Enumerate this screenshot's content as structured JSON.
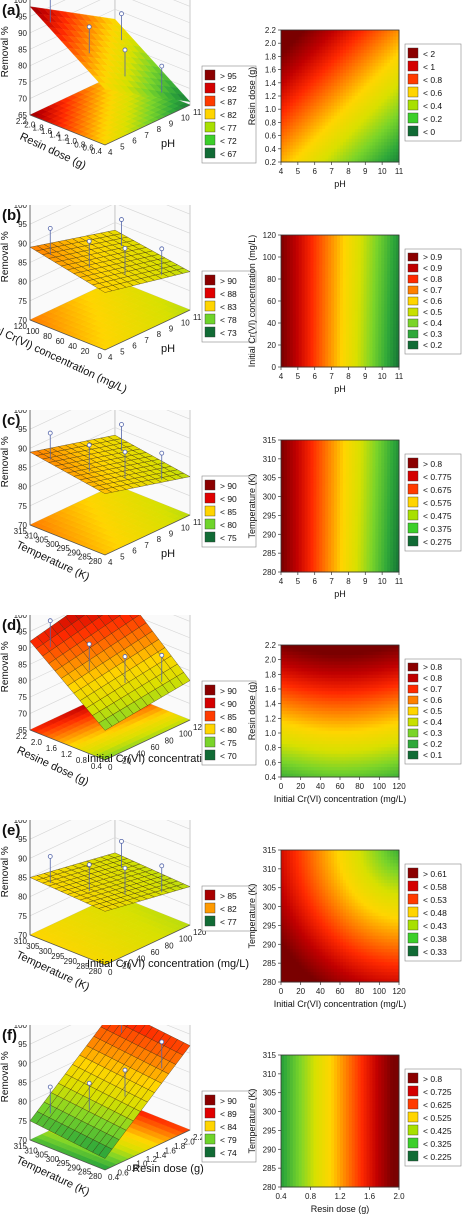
{
  "panels": [
    {
      "label": "(a)",
      "surface": {
        "type": "surface3d",
        "zlabel": "Removal %",
        "xlabel": "pH",
        "ylabel": "Resin dose (g)",
        "zticks": [
          "65",
          "70",
          "75",
          "80",
          "85",
          "90",
          "95",
          "100"
        ],
        "xticks": [
          "4",
          "5",
          "6",
          "7",
          "8",
          "9",
          "10",
          "11"
        ],
        "yticks": [
          "0.4",
          "0.6",
          "0.8",
          "1.0",
          "1.2",
          "1.4",
          "1.6",
          "1.8",
          "2.0",
          "2.2"
        ],
        "zlim": [
          65,
          100
        ],
        "corners": {
          "low_x_low_y": 82,
          "high_x_low_y": 66,
          "low_x_high_y": 98,
          "high_x_high_y": 82
        },
        "mesh": false,
        "legend": [
          "> 95",
          "< 92",
          "< 87",
          "< 82",
          "< 77",
          "< 72",
          "< 67"
        ],
        "legend_colors": [
          "#8b0000",
          "#d40000",
          "#ff3b00",
          "#ffd500",
          "#a8e000",
          "#3ccf2a",
          "#116b35"
        ]
      },
      "contour": {
        "type": "heatmap",
        "xlabel": "pH",
        "ylabel": "Resin dose (g)",
        "xticks": [
          "4",
          "5",
          "6",
          "7",
          "8",
          "9",
          "10",
          "11"
        ],
        "yticks": [
          "0.2",
          "0.4",
          "0.6",
          "0.8",
          "1.0",
          "1.2",
          "1.4",
          "1.6",
          "1.8",
          "2.0",
          "2.2"
        ],
        "pattern": "diag",
        "legend": [
          "< 2",
          "< 1",
          "< 0.8",
          "< 0.6",
          "< 0.4",
          "< 0.2",
          "< 0"
        ],
        "legend_colors": [
          "#8b0000",
          "#d40000",
          "#ff3b00",
          "#ffd500",
          "#a8e000",
          "#3ccf2a",
          "#116b35"
        ]
      }
    },
    {
      "label": "(b)",
      "surface": {
        "type": "surface3d",
        "zlabel": "Removal %",
        "xlabel": "pH",
        "ylabel": "Initial Cr(VI) concentration (mg/L)",
        "zticks": [
          "70",
          "75",
          "80",
          "85",
          "90",
          "95",
          "100"
        ],
        "xticks": [
          "4",
          "5",
          "6",
          "7",
          "8",
          "9",
          "10",
          "11"
        ],
        "yticks": [
          "0",
          "20",
          "40",
          "60",
          "80",
          "100",
          "120"
        ],
        "zlim": [
          70,
          100
        ],
        "corners": {
          "low_x_low_y": 85,
          "high_x_low_y": 80,
          "low_x_high_y": 89,
          "high_x_high_y": 83
        },
        "mesh": true,
        "legend": [
          "> 90",
          "< 88",
          "< 83",
          "< 78",
          "< 73"
        ],
        "legend_colors": [
          "#8b0000",
          "#e00000",
          "#ffd500",
          "#6fd42a",
          "#116b35"
        ]
      },
      "contour": {
        "type": "heatmap",
        "xlabel": "pH",
        "ylabel": "Initial Cr(VI) concentration (mg/L)",
        "xticks": [
          "4",
          "5",
          "6",
          "7",
          "8",
          "9",
          "10",
          "11"
        ],
        "yticks": [
          "0",
          "20",
          "40",
          "60",
          "80",
          "100",
          "120"
        ],
        "pattern": "xs",
        "legend": [
          "> 0.9",
          "< 0.9",
          "< 0.8",
          "< 0.7",
          "< 0.6",
          "< 0.5",
          "< 0.4",
          "< 0.3",
          "< 0.2"
        ],
        "legend_colors": [
          "#8b0000",
          "#c00000",
          "#ff2a00",
          "#ff8000",
          "#ffd500",
          "#c8e000",
          "#7ad42a",
          "#2fa83a",
          "#116b35"
        ]
      }
    },
    {
      "label": "(c)",
      "surface": {
        "type": "surface3d",
        "zlabel": "Removal %",
        "xlabel": "pH",
        "ylabel": "Temperature (K)",
        "zticks": [
          "70",
          "75",
          "80",
          "85",
          "90",
          "95",
          "100"
        ],
        "xticks": [
          "4",
          "5",
          "6",
          "7",
          "8",
          "9",
          "10",
          "11"
        ],
        "yticks": [
          "280",
          "285",
          "290",
          "295",
          "300",
          "305",
          "310",
          "315"
        ],
        "zlim": [
          70,
          100
        ],
        "corners": {
          "low_x_low_y": 86,
          "high_x_low_y": 80,
          "low_x_high_y": 89,
          "high_x_high_y": 83
        },
        "mesh": true,
        "legend": [
          "> 90",
          "< 90",
          "< 85",
          "< 80",
          "< 75"
        ],
        "legend_colors": [
          "#8b0000",
          "#e00000",
          "#ffd500",
          "#6fd42a",
          "#116b35"
        ]
      },
      "contour": {
        "type": "heatmap",
        "xlabel": "pH",
        "ylabel": "Temperature (K)",
        "xticks": [
          "4",
          "5",
          "6",
          "7",
          "8",
          "9",
          "10",
          "11"
        ],
        "yticks": [
          "280",
          "285",
          "290",
          "295",
          "300",
          "305",
          "310",
          "315"
        ],
        "pattern": "xs",
        "legend": [
          "> 0.8",
          "< 0.775",
          "< 0.675",
          "< 0.575",
          "< 0.475",
          "< 0.375",
          "< 0.275"
        ],
        "legend_colors": [
          "#8b0000",
          "#d40000",
          "#ff3b00",
          "#ffd500",
          "#a8e000",
          "#3ccf2a",
          "#116b35"
        ]
      }
    },
    {
      "label": "(d)",
      "surface": {
        "type": "surface3d",
        "zlabel": "Removal %",
        "xlabel": "Initial Cr(VI) concentration (mg/L)",
        "ylabel": "Resine dose (g)",
        "zticks": [
          "65",
          "70",
          "75",
          "80",
          "85",
          "90",
          "95",
          "100"
        ],
        "xticks": [
          "0",
          "20",
          "40",
          "60",
          "80",
          "100",
          "120"
        ],
        "yticks": [
          "0.4",
          "0.8",
          "1.2",
          "1.6",
          "2.0",
          "2.2"
        ],
        "zlim": [
          65,
          100
        ],
        "corners": {
          "low_x_low_y": 74,
          "high_x_low_y": 77,
          "low_x_high_y": 92,
          "high_x_high_y": 98
        },
        "mesh": true,
        "legend": [
          "> 90",
          "< 90",
          "< 85",
          "< 80",
          "< 75",
          "< 70"
        ],
        "legend_colors": [
          "#8b0000",
          "#d40000",
          "#ff3b00",
          "#ffd500",
          "#7ad42a",
          "#116b35"
        ]
      },
      "contour": {
        "type": "heatmap",
        "xlabel": "Initial Cr(VI) concentration (mg/L)",
        "ylabel": "Resin dose (g)",
        "xticks": [
          "0",
          "20",
          "40",
          "60",
          "80",
          "100",
          "120"
        ],
        "yticks": [
          "0.4",
          "0.6",
          "0.8",
          "1.0",
          "1.2",
          "1.4",
          "1.6",
          "1.8",
          "2.0",
          "2.2"
        ],
        "pattern": "ys",
        "legend": [
          "> 0.8",
          "< 0.8",
          "< 0.7",
          "< 0.6",
          "< 0.5",
          "< 0.4",
          "< 0.3",
          "< 0.2",
          "< 0.1"
        ],
        "legend_colors": [
          "#8b0000",
          "#c00000",
          "#ff2a00",
          "#ff8000",
          "#ffd500",
          "#c8e000",
          "#7ad42a",
          "#2fa83a",
          "#116b35"
        ]
      }
    },
    {
      "label": "(e)",
      "surface": {
        "type": "surface3d",
        "zlabel": "Removal %",
        "xlabel": "Initial Cr(VI) concentration (mg/L)",
        "ylabel": "Temperature (K)",
        "zticks": [
          "70",
          "75",
          "80",
          "85",
          "90",
          "95",
          "100"
        ],
        "xticks": [
          "0",
          "20",
          "40",
          "60",
          "80",
          "100",
          "120"
        ],
        "yticks": [
          "280",
          "285",
          "290",
          "295",
          "300",
          "305",
          "310"
        ],
        "zlim": [
          70,
          100
        ],
        "corners": {
          "low_x_low_y": 84,
          "high_x_low_y": 80,
          "low_x_high_y": 85,
          "high_x_high_y": 81
        },
        "mesh": true,
        "legend": [
          "> 85",
          "< 82",
          "< 77"
        ],
        "legend_colors": [
          "#a80000",
          "#ff9a00",
          "#116b35"
        ]
      },
      "contour": {
        "type": "heatmap",
        "xlabel": "Initial Cr(VI) concentration (mg/L)",
        "ylabel": "Temperature (K)",
        "xticks": [
          "0",
          "20",
          "40",
          "60",
          "80",
          "100",
          "120"
        ],
        "yticks": [
          "280",
          "285",
          "290",
          "295",
          "300",
          "305",
          "310",
          "315"
        ],
        "pattern": "corner",
        "legend": [
          "> 0.61",
          "< 0.58",
          "< 0.53",
          "< 0.48",
          "< 0.43",
          "< 0.38",
          "< 0.33"
        ],
        "legend_colors": [
          "#8b0000",
          "#d40000",
          "#ff3b00",
          "#ffd500",
          "#a8e000",
          "#3ccf2a",
          "#116b35"
        ]
      }
    },
    {
      "label": "(f)",
      "surface": {
        "type": "surface3d",
        "zlabel": "Removal %",
        "xlabel": "Resin dose (g)",
        "ylabel": "Temperature (K)",
        "zticks": [
          "70",
          "75",
          "80",
          "85",
          "90",
          "95",
          "100"
        ],
        "xticks": [
          "0.4",
          "0.6",
          "0.8",
          "1.0",
          "1.2",
          "1.4",
          "1.6",
          "1.8",
          "2.0",
          "2.2"
        ],
        "yticks": [
          "280",
          "285",
          "290",
          "295",
          "300",
          "305",
          "310",
          "315"
        ],
        "zlim": [
          70,
          100
        ],
        "corners": {
          "low_x_low_y": 73,
          "high_x_low_y": 92,
          "low_x_high_y": 75,
          "high_x_high_y": 94
        },
        "mesh": true,
        "legend": [
          "> 90",
          "< 89",
          "< 84",
          "< 79",
          "< 74"
        ],
        "legend_colors": [
          "#8b0000",
          "#e00000",
          "#ffd500",
          "#6fd42a",
          "#116b35"
        ]
      },
      "contour": {
        "type": "heatmap",
        "xlabel": "Resin dose (g)",
        "ylabel": "Temperature (K)",
        "xticks": [
          "0.4",
          "0.8",
          "1.2",
          "1.6",
          "2.0"
        ],
        "yticks": [
          "280",
          "285",
          "290",
          "295",
          "300",
          "305",
          "310",
          "315"
        ],
        "pattern": "xsrev",
        "legend": [
          "> 0.8",
          "< 0.725",
          "< 0.625",
          "< 0.525",
          "< 0.425",
          "< 0.325",
          "< 0.225"
        ],
        "legend_colors": [
          "#8b0000",
          "#d40000",
          "#ff3b00",
          "#ffd500",
          "#a8e000",
          "#3ccf2a",
          "#116b35"
        ]
      }
    }
  ]
}
